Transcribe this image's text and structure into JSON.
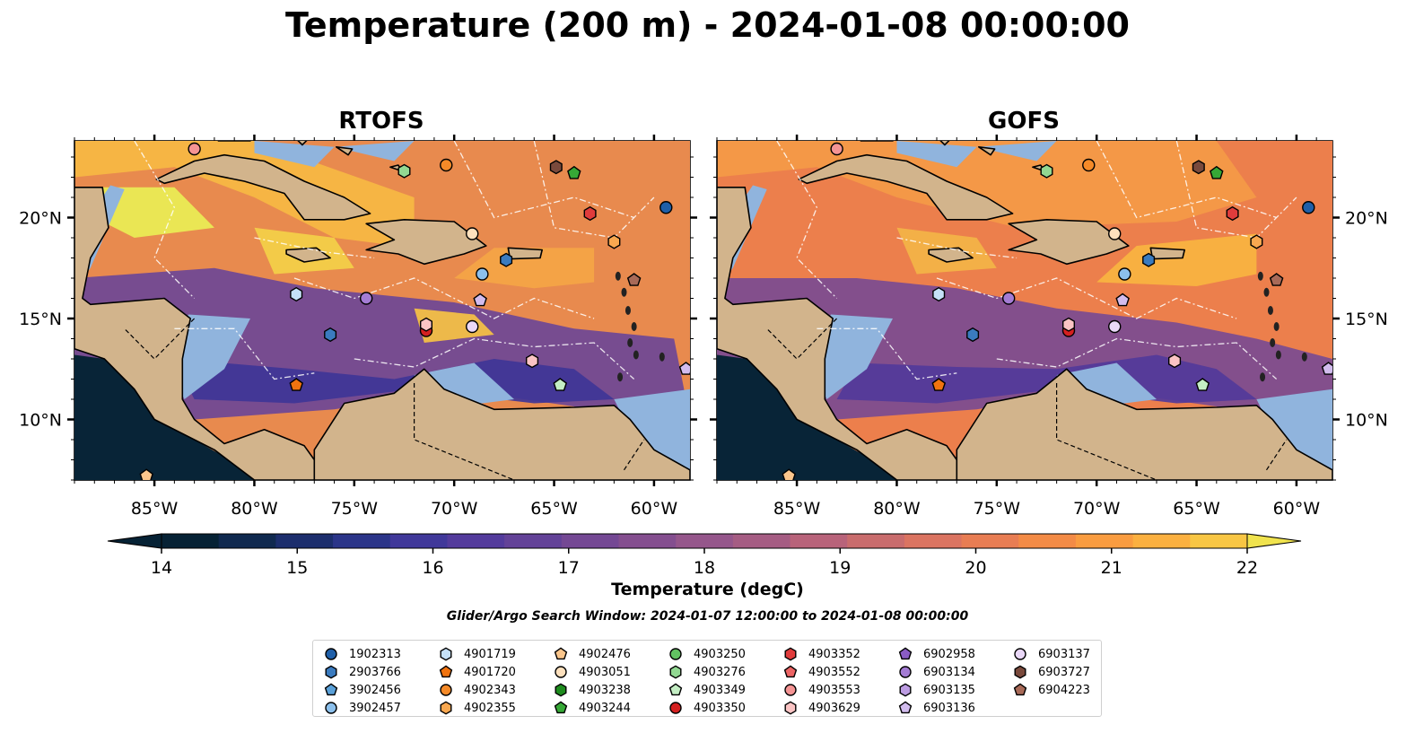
{
  "title": "Temperature (200 m) - 2024-01-08 00:00:00",
  "panels": [
    {
      "name": "RTOFS"
    },
    {
      "name": "GOFS"
    }
  ],
  "axes": {
    "x_ticks": [
      "85°W",
      "80°W",
      "75°W",
      "70°W",
      "65°W",
      "60°W"
    ],
    "x_tick_values": [
      -85,
      -80,
      -75,
      -70,
      -65,
      -60
    ],
    "y_ticks": [
      "20°N",
      "15°N",
      "10°N"
    ],
    "y_tick_values": [
      20,
      15,
      10
    ],
    "lon_range": [
      -89,
      -58.2
    ],
    "lat_range": [
      7,
      23.8
    ]
  },
  "colorbar": {
    "label": "Temperature (degC)",
    "ticks": [
      "14",
      "15",
      "16",
      "17",
      "18",
      "19",
      "20",
      "21",
      "22"
    ],
    "tick_values": [
      14,
      15,
      16,
      17,
      18,
      19,
      20,
      21,
      22
    ],
    "range": [
      14,
      22
    ],
    "colors": [
      "#062235",
      "#10294f",
      "#1c2e6d",
      "#2b3589",
      "#40389a",
      "#533b9c",
      "#634298",
      "#744894",
      "#844e8f",
      "#95568b",
      "#a55c83",
      "#b8637a",
      "#c96c6d",
      "#db7461",
      "#e87d53",
      "#f38b46",
      "#f99c40",
      "#fbb040",
      "#f8c644",
      "#f0e34e"
    ]
  },
  "search_window": "Glider/Argo Search Window: 2024-01-07 12:00:00 to 2024-01-08 00:00:00",
  "legend": [
    {
      "id": "1902313",
      "shape": "circle",
      "color": "#1f5fa8"
    },
    {
      "id": "2903766",
      "shape": "hexagon",
      "color": "#3a7bbf"
    },
    {
      "id": "3902456",
      "shape": "pentagon",
      "color": "#5aa0d8"
    },
    {
      "id": "3902457",
      "shape": "circle",
      "color": "#8cc0ec"
    },
    {
      "id": "4901719",
      "shape": "hexagon",
      "color": "#c5e1f8"
    },
    {
      "id": "4901720",
      "shape": "pentagon",
      "color": "#f07310"
    },
    {
      "id": "4902343",
      "shape": "circle",
      "color": "#f58a28"
    },
    {
      "id": "4902355",
      "shape": "hexagon",
      "color": "#f9a850"
    },
    {
      "id": "4902476",
      "shape": "pentagon",
      "color": "#fbc68c"
    },
    {
      "id": "4903051",
      "shape": "circle",
      "color": "#fde0bd"
    },
    {
      "id": "4903238",
      "shape": "hexagon",
      "color": "#1e8c1e"
    },
    {
      "id": "4903244",
      "shape": "pentagon",
      "color": "#36a836"
    },
    {
      "id": "4903250",
      "shape": "circle",
      "color": "#62c262"
    },
    {
      "id": "4903276",
      "shape": "hexagon",
      "color": "#92d892"
    },
    {
      "id": "4903349",
      "shape": "pentagon",
      "color": "#c4eec4"
    },
    {
      "id": "4903350",
      "shape": "circle",
      "color": "#d42020"
    },
    {
      "id": "4903352",
      "shape": "hexagon",
      "color": "#e03c3c"
    },
    {
      "id": "4903552",
      "shape": "pentagon",
      "color": "#ec6464"
    },
    {
      "id": "4903553",
      "shape": "circle",
      "color": "#f59494"
    },
    {
      "id": "4903629",
      "shape": "hexagon",
      "color": "#fbc4c4"
    },
    {
      "id": "6902958",
      "shape": "pentagon",
      "color": "#8a5cc4"
    },
    {
      "id": "6903134",
      "shape": "circle",
      "color": "#a47cd4"
    },
    {
      "id": "6903135",
      "shape": "hexagon",
      "color": "#bc9ce2"
    },
    {
      "id": "6903136",
      "shape": "pentagon",
      "color": "#d2bcee"
    },
    {
      "id": "6903137",
      "shape": "circle",
      "color": "#ead8f8"
    },
    {
      "id": "6903727",
      "shape": "hexagon",
      "color": "#7a4a3c"
    },
    {
      "id": "6904223",
      "shape": "pentagon",
      "color": "#a86a58"
    }
  ],
  "floats_on_map": [
    {
      "id": "6903727",
      "lon": -64.9,
      "lat": 22.5
    },
    {
      "id": "4903244",
      "lon": -64.0,
      "lat": 22.2
    },
    {
      "id": "4903276",
      "lon": -72.5,
      "lat": 22.3
    },
    {
      "id": "4902343",
      "lon": -70.4,
      "lat": 22.6
    },
    {
      "id": "4903553",
      "lon": -83.0,
      "lat": 23.4
    },
    {
      "id": "1902313",
      "lon": -59.4,
      "lat": 20.5
    },
    {
      "id": "4903352",
      "lon": -63.2,
      "lat": 20.2
    },
    {
      "id": "4902355",
      "lon": -62.0,
      "lat": 18.8
    },
    {
      "id": "4903051",
      "lon": -69.1,
      "lat": 19.2
    },
    {
      "id": "3902457",
      "lon": -68.6,
      "lat": 17.2
    },
    {
      "id": "2903766",
      "lon": -67.4,
      "lat": 17.9
    },
    {
      "id": "6904223",
      "lon": -61.0,
      "lat": 16.9
    },
    {
      "id": "4901719",
      "lon": -77.9,
      "lat": 16.2
    },
    {
      "id": "6903134",
      "lon": -74.4,
      "lat": 16.0
    },
    {
      "id": "6903136",
      "lon": -68.7,
      "lat": 15.9
    },
    {
      "id": "6903137",
      "lon": -69.1,
      "lat": 14.6
    },
    {
      "id": "4903350",
      "lon": -71.4,
      "lat": 14.4
    },
    {
      "id": "4903629",
      "lon": -71.4,
      "lat": 14.7
    },
    {
      "id": "2903766",
      "lon": -76.2,
      "lat": 14.2
    },
    {
      "id": "4903629",
      "lon": -66.1,
      "lat": 12.9
    },
    {
      "id": "4901720",
      "lon": -77.9,
      "lat": 11.7
    },
    {
      "id": "4903349",
      "lon": -64.7,
      "lat": 11.7
    },
    {
      "id": "4902476",
      "lon": -85.4,
      "lat": 7.2
    },
    {
      "id": "6903136",
      "lon": -58.4,
      "lat": 12.5
    }
  ]
}
